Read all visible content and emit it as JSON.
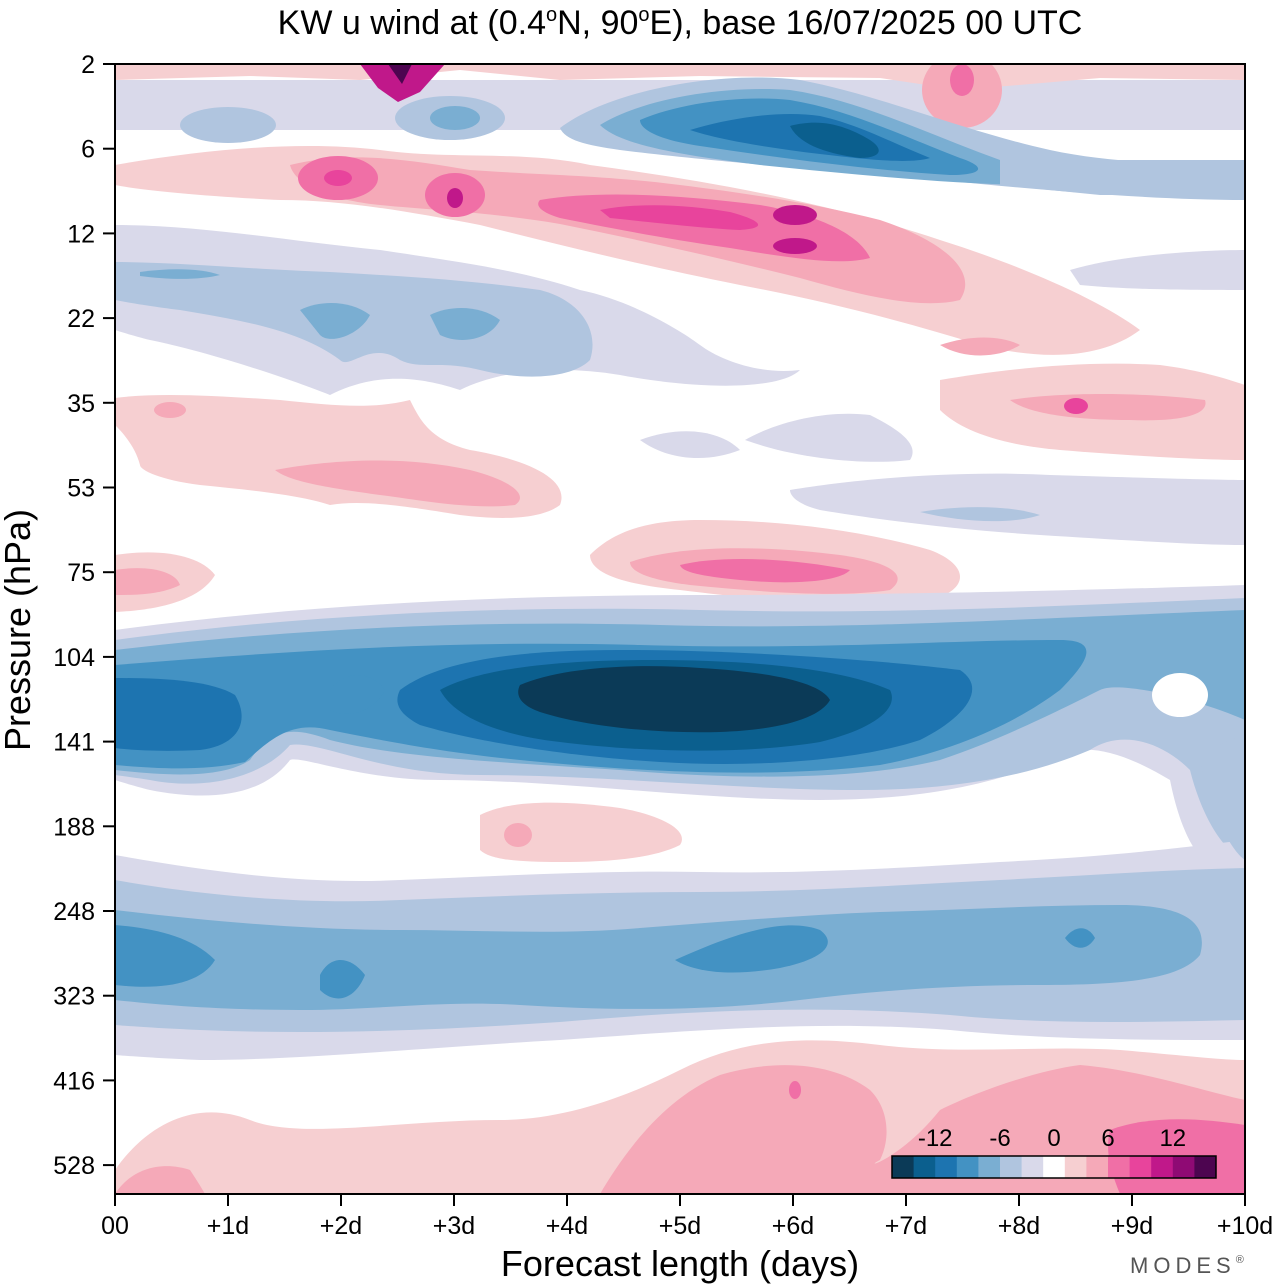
{
  "chart_data": {
    "type": "heatmap",
    "title_parts": {
      "prefix": "KW u wind at (0.4",
      "deg1": "o",
      "mid": "N, 90",
      "deg2": "o",
      "suffix": "E),  base 16/07/2025  00 UTC"
    },
    "xlabel": "Forecast length (days)",
    "ylabel": "Pressure (hPa)",
    "x_ticks": [
      "00",
      "+1d",
      "+2d",
      "+3d",
      "+4d",
      "+5d",
      "+6d",
      "+7d",
      "+8d",
      "+9d",
      "+10d"
    ],
    "x_range_days": [
      0,
      10
    ],
    "y_ticks": [
      "2",
      "6",
      "12",
      "22",
      "35",
      "53",
      "75",
      "104",
      "141",
      "188",
      "248",
      "323",
      "416",
      "528"
    ],
    "y_scale": "pressure levels (top = 2 hPa)",
    "colorbar": {
      "tick_labels": [
        "-12",
        "-6",
        "0",
        "6",
        "12"
      ],
      "levels": [
        -16,
        -14,
        -12,
        -10,
        -8,
        -6,
        -4,
        -2,
        2,
        4,
        6,
        8,
        10,
        12,
        14,
        16
      ],
      "colors": [
        "#0b3a57",
        "#0b5f8e",
        "#1d74b0",
        "#4392c3",
        "#7aaed2",
        "#b0c5df",
        "#d9d9ea",
        "#ffffff",
        "#f6cfd1",
        "#f5a9b8",
        "#f06fa6",
        "#e8449c",
        "#c0188a",
        "#8f0a74",
        "#4d0550"
      ]
    },
    "features": [
      {
        "name": "strong easterly core",
        "x_days": [
          3.5,
          7.0
        ],
        "level": "104-141 hPa",
        "min_value": -16
      },
      {
        "name": "easterly band",
        "x_days": [
          0,
          10
        ],
        "level": "248-323 hPa",
        "min_value": -10
      },
      {
        "name": "upper easterly jet",
        "x_days": [
          4.5,
          8.5
        ],
        "level": "3-8 hPa",
        "min_value": -14
      },
      {
        "name": "westerly band",
        "x_days": [
          1.5,
          7.0
        ],
        "level": "6-18 hPa",
        "max_value": 10
      },
      {
        "name": "westerly patch",
        "x_days": [
          4.5,
          7.0
        ],
        "level": "75 hPa",
        "max_value": 10
      },
      {
        "name": "westerly patch",
        "x_days": [
          6.0,
          10.0
        ],
        "level": "416-528 hPa",
        "max_value": 6
      },
      {
        "name": "westerly maximum",
        "x_days": [
          2.3,
          2.8
        ],
        "level": "2-3 hPa",
        "max_value": 16
      }
    ]
  },
  "branding": {
    "logo_text": "MODES",
    "logo_mark": "®"
  }
}
